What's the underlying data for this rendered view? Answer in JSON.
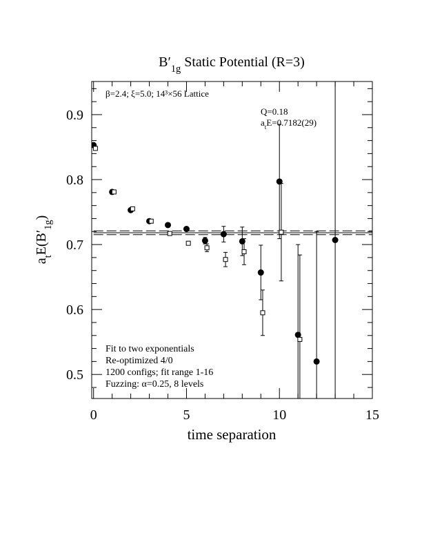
{
  "chart_data": {
    "type": "scatter",
    "title": [
      {
        "text": "B′"
      },
      {
        "text": "1g",
        "sub": true
      },
      {
        "text": " Static Potential (R=3)"
      }
    ],
    "xlabel": [
      {
        "text": "time separation"
      }
    ],
    "ylabel": [
      {
        "text": "a"
      },
      {
        "text": "t",
        "sub": true
      },
      {
        "text": "E(B′"
      },
      {
        "text": "1g",
        "sub": true
      },
      {
        "text": ")"
      }
    ],
    "xlim": [
      -0.1,
      15
    ],
    "ylim": [
      0.463,
      0.951
    ],
    "xticks": [
      0,
      5,
      10,
      15
    ],
    "yticks": [
      0.5,
      0.6,
      0.7,
      0.8,
      0.9
    ],
    "xticks_minor": [
      1,
      2,
      3,
      4,
      6,
      7,
      8,
      9,
      11,
      12,
      13,
      14
    ],
    "yticks_minor": [
      0.48,
      0.52,
      0.54,
      0.56,
      0.58,
      0.62,
      0.64,
      0.66,
      0.68,
      0.72,
      0.74,
      0.76,
      0.78,
      0.82,
      0.84,
      0.86,
      0.88,
      0.92,
      0.94
    ],
    "series": [
      {
        "marker": "circle",
        "color": "#000000",
        "x": [
          0,
          1,
          2,
          3,
          4,
          5,
          6,
          7,
          8,
          9,
          10,
          11,
          12,
          13
        ],
        "values": [
          0.853,
          0.781,
          0.753,
          0.736,
          0.73,
          0.724,
          0.706,
          0.716,
          0.705,
          0.657,
          0.797,
          0.561,
          0.52,
          0.707
        ],
        "errors": [
          0.002,
          0.002,
          0.002,
          0.002,
          0.003,
          0.003,
          0.005,
          0.012,
          0.022,
          0.042,
          0.088,
          0.139,
          0.2,
          0.3
        ]
      },
      {
        "marker": "square",
        "color": "#000000",
        "x": [
          0.1,
          1.1,
          2.1,
          3.1,
          4.1,
          5.1,
          6.1,
          7.1,
          8.1,
          9.1,
          10.1,
          11.1
        ],
        "values": [
          0.848,
          0.781,
          0.755,
          0.736,
          0.717,
          0.702,
          0.695,
          0.677,
          0.689,
          0.595,
          0.719,
          0.554
        ],
        "errors": [
          0.002,
          0.002,
          0.002,
          0.002,
          0.002,
          0.003,
          0.006,
          0.011,
          0.02,
          0.035,
          0.075,
          0.13
        ]
      }
    ],
    "fit": {
      "value": 0.7182,
      "error": 0.0029
    },
    "annotations_top_left": [
      [
        {
          "text": "β=2.4; ξ=5.0; 14³×56 Lattice"
        }
      ]
    ],
    "annotations_top_right": [
      [
        {
          "text": "Q=0.18"
        }
      ],
      [
        {
          "text": "a"
        },
        {
          "text": "t",
          "sub": true
        },
        {
          "text": "E=0.7182(29)"
        }
      ]
    ],
    "annotations_bottom_left": [
      [
        {
          "text": "Fit to two exponentials"
        }
      ],
      [
        {
          "text": "Re-optimized 4/0"
        }
      ],
      [
        {
          "text": "1200 configs; fit range 1-16"
        }
      ],
      [
        {
          "text": "Fuzzing: α=0.25, 8 levels"
        }
      ]
    ]
  }
}
